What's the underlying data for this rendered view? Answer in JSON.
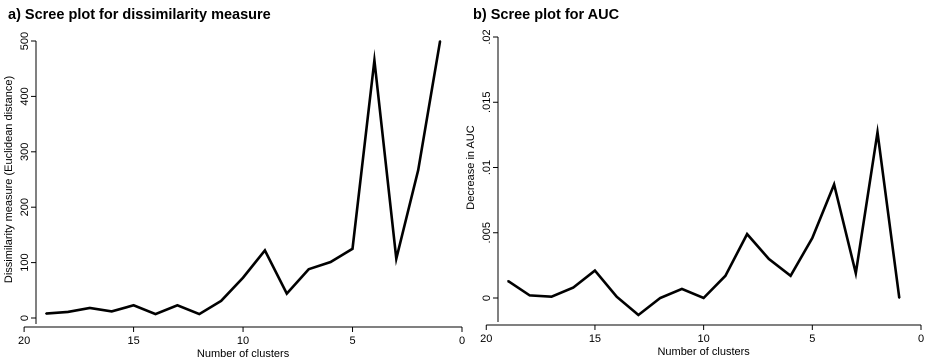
{
  "chart_data": [
    {
      "type": "line",
      "title": "a) Scree plot for dissimilarity measure",
      "xlabel": "Number of clusters",
      "ylabel": "Dissimilarity measure (Euclidean distance)",
      "x_reversed": true,
      "xlim": [
        19,
        0
      ],
      "ylim": [
        0,
        500
      ],
      "xticks": [
        20,
        15,
        10,
        5,
        0
      ],
      "xtick_labels": [
        "20",
        "15",
        "10",
        "5",
        "0"
      ],
      "yticks": [
        0,
        100,
        200,
        300,
        400,
        500
      ],
      "ytick_labels": [
        "0",
        "100",
        "200",
        "300",
        "400",
        "500"
      ],
      "grid": false,
      "series": [
        {
          "x": [
            19,
            18,
            17,
            16,
            15,
            14,
            13,
            12,
            11,
            10,
            9,
            8,
            7,
            6,
            5,
            4,
            3,
            2,
            1
          ],
          "values": [
            8,
            11,
            18,
            12,
            23,
            7,
            23,
            7,
            31,
            73,
            122,
            44,
            88,
            101,
            125,
            465,
            107,
            267,
            500
          ],
          "color": "#000000"
        }
      ]
    },
    {
      "type": "line",
      "title": "b) Scree plot for AUC",
      "xlabel": "Number of clusters",
      "ylabel": "Decrease in AUC",
      "x_reversed": true,
      "xlim": [
        19,
        0
      ],
      "ylim": [
        0,
        0.02
      ],
      "xticks": [
        20,
        15,
        10,
        5,
        0
      ],
      "xtick_labels": [
        "20",
        "15",
        "10",
        "5",
        "0"
      ],
      "yticks": [
        0,
        0.005,
        0.01,
        0.015,
        0.02
      ],
      "ytick_labels": [
        "0",
        ".005",
        ".01",
        ".015",
        ".02"
      ],
      "grid": false,
      "series": [
        {
          "x": [
            19,
            18,
            17,
            16,
            15,
            14,
            13,
            12,
            11,
            10,
            9,
            8,
            7,
            6,
            5,
            4,
            3,
            2,
            1
          ],
          "values": [
            0.0013,
            0.0002,
            0.0001,
            0.0008,
            0.0021,
            0.0001,
            -0.0013,
            0.0,
            0.0007,
            0.0,
            0.0017,
            0.0049,
            0.003,
            0.0017,
            0.0046,
            0.0087,
            0.0019,
            0.0127,
            0.0
          ],
          "color": "#000000"
        }
      ]
    }
  ]
}
